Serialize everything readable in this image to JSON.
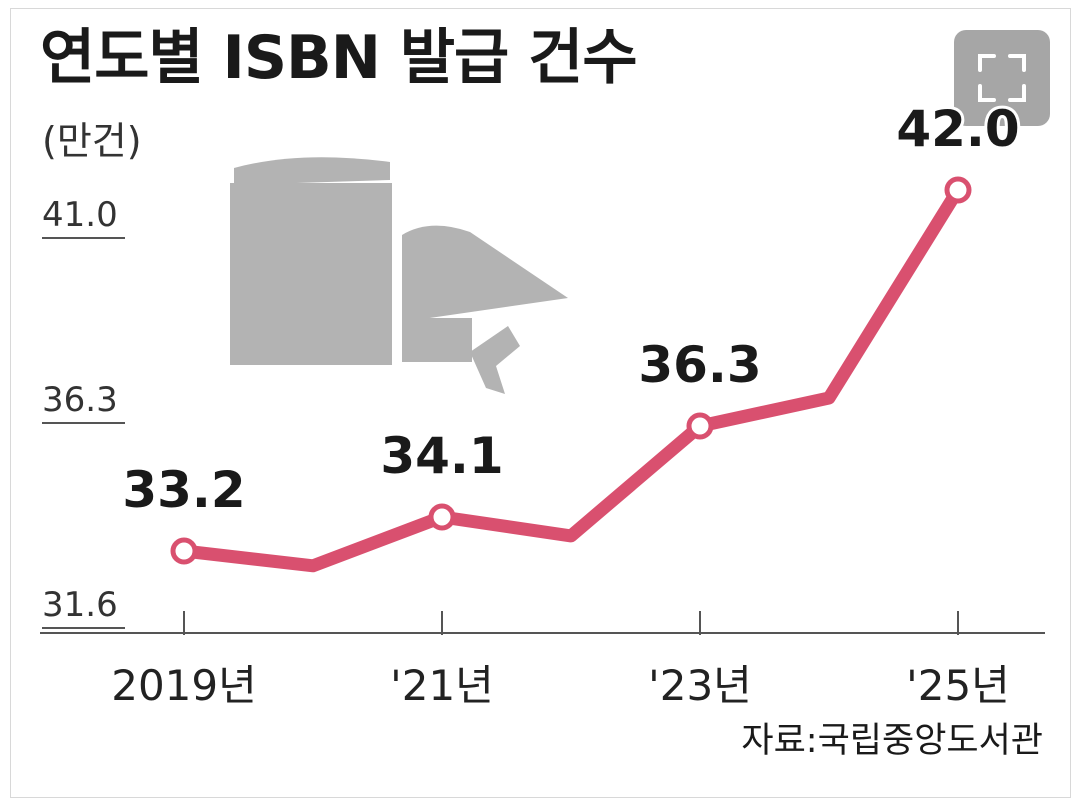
{
  "title": "연도별 ISBN 발급 건수",
  "unit": "(만건)",
  "source": "자료:국립중앙도서관",
  "controls": {
    "expand_icon": "fullscreen-icon"
  },
  "colors": {
    "line": "#d9506f",
    "axis": "#555555",
    "text": "#1a1a1a",
    "illustration": "#b3b3b3"
  },
  "chart_data": {
    "type": "line",
    "title": "연도별 ISBN 발급 건수",
    "ylabel": "(만건)",
    "y_tick_labels": [
      "41.0",
      "36.3",
      "31.6"
    ],
    "y_ticks": [
      41.0,
      36.3,
      31.6
    ],
    "x": [
      2019,
      2020,
      2021,
      2022,
      2023,
      2024,
      2025
    ],
    "x_tick_labels": [
      "2019년",
      "'21년",
      "'23년",
      "'25년"
    ],
    "x_tick_values": [
      2019,
      2021,
      2023,
      2025
    ],
    "series": [
      {
        "values": [
          33.2,
          32.9,
          34.1,
          33.6,
          36.3,
          37.0,
          42.0
        ],
        "labeled": [
          true,
          false,
          true,
          false,
          true,
          false,
          true
        ],
        "data_labels": [
          "33.2",
          "",
          "34.1",
          "",
          "36.3",
          "",
          "42.0"
        ]
      }
    ],
    "grid": false,
    "legend": "none"
  }
}
